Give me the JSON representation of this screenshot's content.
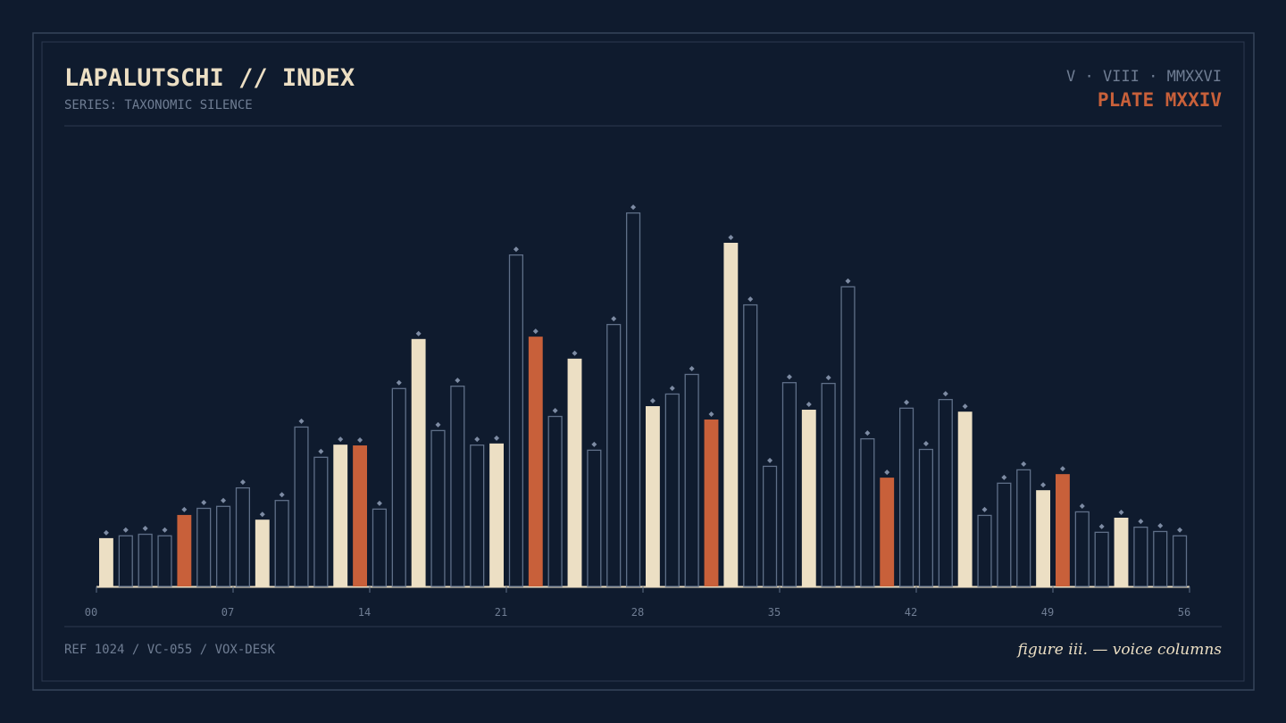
{
  "header": {
    "title": "LAPALUTSCHI // INDEX",
    "subtitle": "SERIES: TAXONOMIC SILENCE",
    "date": "V · VIII · MMXXVI",
    "plate": "PLATE MXXIV"
  },
  "footer": {
    "reference": "REF 1024 / VC-055 / VOX-DESK",
    "caption": "figure iii. — voice columns"
  },
  "chart_data": {
    "type": "bar",
    "x": [
      0,
      1,
      2,
      3,
      4,
      5,
      6,
      7,
      8,
      9,
      10,
      11,
      12,
      13,
      14,
      15,
      16,
      17,
      18,
      19,
      20,
      21,
      22,
      23,
      24,
      25,
      26,
      27,
      28,
      29,
      30,
      31,
      32,
      33,
      34,
      35,
      36,
      37,
      38,
      39,
      40,
      41,
      42,
      43,
      44,
      45,
      46,
      47,
      48,
      49,
      50,
      51,
      52,
      53,
      54,
      55
    ],
    "values": [
      12.3,
      13.0,
      13.4,
      13.0,
      18.2,
      20.0,
      20.5,
      25.2,
      17.0,
      22.0,
      40.7,
      33.0,
      36.1,
      35.9,
      19.8,
      50.5,
      63.0,
      39.8,
      51.1,
      36.1,
      36.4,
      84.5,
      63.6,
      43.4,
      58.0,
      34.8,
      66.8,
      95.2,
      45.9,
      49.1,
      54.1,
      42.5,
      87.5,
      71.8,
      30.7,
      52.0,
      45.0,
      51.8,
      76.4,
      37.7,
      27.7,
      45.5,
      35.0,
      47.7,
      44.5,
      18.2,
      26.4,
      29.8,
      24.5,
      28.6,
      19.1,
      13.9,
      17.5,
      15.2,
      14.1,
      13.0
    ],
    "styles": [
      "filled",
      "outline",
      "outline",
      "outline",
      "filled",
      "outline",
      "outline",
      "outline",
      "filled",
      "outline",
      "outline",
      "outline",
      "filled",
      "filled",
      "outline",
      "outline",
      "filled",
      "outline",
      "outline",
      "outline",
      "filled",
      "outline",
      "filled",
      "outline",
      "filled",
      "outline",
      "outline",
      "outline",
      "filled",
      "outline",
      "outline",
      "filled",
      "filled",
      "outline",
      "outline",
      "outline",
      "filled",
      "outline",
      "outline",
      "outline",
      "filled",
      "outline",
      "outline",
      "outline",
      "filled",
      "outline",
      "outline",
      "outline",
      "filled",
      "filled",
      "outline",
      "outline",
      "filled",
      "outline",
      "outline",
      "outline"
    ],
    "colors": [
      "#ecdfc4",
      "#5f6f88",
      "#5f6f88",
      "#5f6f88",
      "#c8603a",
      "#5f6f88",
      "#5f6f88",
      "#5f6f88",
      "#ecdfc4",
      "#5f6f88",
      "#5f6f88",
      "#5f6f88",
      "#ecdfc4",
      "#c8603a",
      "#5f6f88",
      "#5f6f88",
      "#ecdfc4",
      "#5f6f88",
      "#5f6f88",
      "#5f6f88",
      "#ecdfc4",
      "#5f6f88",
      "#c8603a",
      "#5f6f88",
      "#ecdfc4",
      "#5f6f88",
      "#5f6f88",
      "#5f6f88",
      "#ecdfc4",
      "#5f6f88",
      "#5f6f88",
      "#c8603a",
      "#ecdfc4",
      "#5f6f88",
      "#5f6f88",
      "#5f6f88",
      "#ecdfc4",
      "#5f6f88",
      "#5f6f88",
      "#5f6f88",
      "#c8603a",
      "#5f6f88",
      "#5f6f88",
      "#5f6f88",
      "#ecdfc4",
      "#5f6f88",
      "#5f6f88",
      "#5f6f88",
      "#ecdfc4",
      "#c8603a",
      "#5f6f88",
      "#5f6f88",
      "#ecdfc4",
      "#5f6f88",
      "#5f6f88",
      "#5f6f88"
    ],
    "xlim": [
      0,
      56
    ],
    "xticks": [
      {
        "value": 0,
        "label": "00"
      },
      {
        "value": 7,
        "label": "07"
      },
      14,
      21,
      28,
      35,
      42,
      49,
      56
    ],
    "ylim": [
      0,
      100
    ]
  }
}
